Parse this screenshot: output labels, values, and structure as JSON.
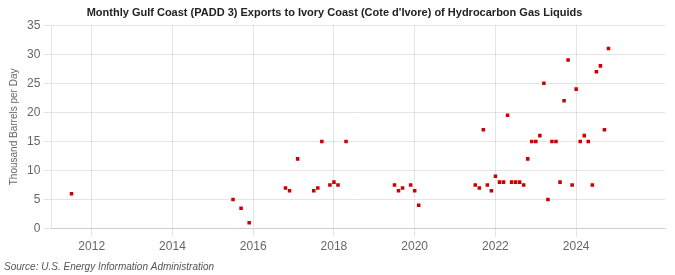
{
  "chart_data": {
    "type": "scatter",
    "title": "Monthly Gulf Coast (PADD 3) Exports to Ivory Coast (Cote d'Ivore) of Hydrocarbon Gas Liquids",
    "ylabel": "Thousand Barrels per Day",
    "annotations": [
      "Source: U.S. Energy Information Administration"
    ],
    "color": "#cc0000",
    "marker": "square",
    "grid": true,
    "xlim": [
      2011.0,
      2026.2
    ],
    "xticks": [
      2012,
      2014,
      2016,
      2018,
      2020,
      2022,
      2024
    ],
    "ylim": [
      0,
      35
    ],
    "yticks": [
      0,
      5,
      10,
      15,
      20,
      25,
      30,
      35
    ],
    "x": [
      2011.5,
      2015.5,
      2015.7,
      2015.9,
      2016.8,
      2016.9,
      2017.1,
      2017.5,
      2017.6,
      2017.7,
      2017.9,
      2018.0,
      2018.1,
      2018.3,
      2019.5,
      2019.6,
      2019.7,
      2019.9,
      2020.0,
      2020.1,
      2021.5,
      2021.6,
      2021.7,
      2021.8,
      2021.9,
      2022.0,
      2022.1,
      2022.2,
      2022.3,
      2022.4,
      2022.5,
      2022.6,
      2022.7,
      2022.8,
      2022.9,
      2023.0,
      2023.1,
      2023.2,
      2023.3,
      2023.4,
      2023.5,
      2023.6,
      2023.7,
      2023.8,
      2023.9,
      2024.0,
      2024.1,
      2024.2,
      2024.3,
      2024.4,
      2024.5,
      2024.6,
      2024.7,
      2024.8
    ],
    "values": [
      6,
      5,
      3.5,
      1,
      7,
      6.5,
      12,
      6.5,
      7,
      15,
      7.5,
      8,
      7.5,
      15,
      7.5,
      6.5,
      7,
      7.5,
      6.5,
      4,
      7.5,
      7,
      17,
      7.5,
      6.5,
      9,
      8,
      8,
      19.5,
      8,
      8,
      8,
      7.5,
      12,
      15,
      15,
      16,
      25,
      5,
      15,
      15,
      8,
      22,
      29,
      7.5,
      24,
      15,
      16,
      15,
      7.5,
      27,
      28,
      17,
      31
    ]
  }
}
